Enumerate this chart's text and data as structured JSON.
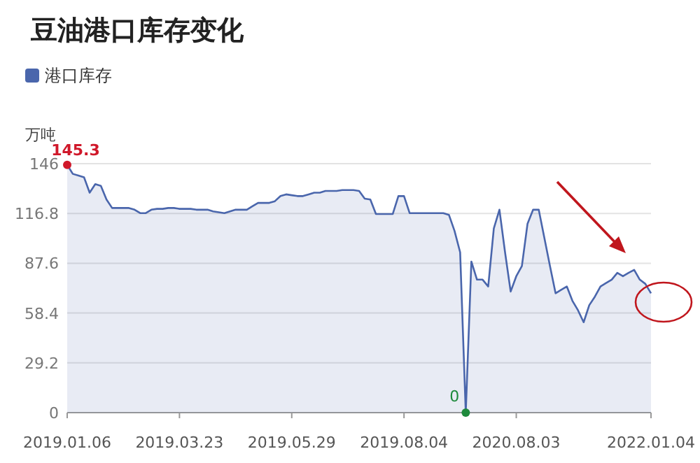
{
  "chart_data": {
    "type": "area",
    "title": "豆油港口库存变化",
    "ylabel": "万吨",
    "legend": "top left",
    "grid": "y",
    "categories": [
      "2019.01.06",
      null,
      null,
      null,
      null,
      null,
      null,
      null,
      null,
      null,
      null,
      null,
      null,
      null,
      null,
      null,
      null,
      null,
      null,
      null,
      "2019.03.23",
      null,
      null,
      null,
      null,
      null,
      null,
      null,
      null,
      null,
      null,
      null,
      null,
      null,
      null,
      null,
      null,
      null,
      null,
      null,
      "2019.05.29",
      null,
      null,
      null,
      null,
      null,
      null,
      null,
      null,
      null,
      null,
      null,
      null,
      null,
      null,
      null,
      null,
      null,
      null,
      null,
      "2019.08.04",
      null,
      null,
      null,
      null,
      null,
      null,
      null,
      null,
      null,
      null,
      null,
      null,
      null,
      null,
      null,
      null,
      null,
      null,
      null,
      "2020.08.03",
      null,
      null,
      null,
      null,
      null,
      null,
      null,
      null,
      null,
      null,
      null,
      null,
      null,
      null,
      null,
      null,
      null,
      null,
      null,
      null,
      null,
      null,
      null,
      "2022.01.04"
    ],
    "ylim": [
      0,
      146
    ],
    "yticks": [
      0,
      29.2,
      58.4,
      87.6,
      116.8,
      146
    ],
    "series": [
      {
        "name": "港口库存",
        "color": "#4a66ac",
        "values": [
          145.3,
          140,
          139,
          138,
          129,
          134,
          133,
          125,
          120,
          120,
          120,
          120,
          119,
          117,
          117,
          119,
          119.5,
          119.5,
          120,
          120,
          119.5,
          119.5,
          119.5,
          119,
          119,
          119,
          118,
          117.5,
          117,
          118,
          119,
          119,
          119,
          121,
          123,
          123,
          123,
          124,
          127,
          128,
          127.5,
          127,
          127,
          128,
          129,
          129,
          130,
          130,
          130,
          130.5,
          130.5,
          130.5,
          130,
          125.5,
          125,
          116.5,
          116.5,
          116.5,
          116.5,
          127,
          127,
          117,
          117,
          117,
          117,
          117,
          117,
          117,
          116,
          106.6,
          94,
          0,
          88.6,
          78,
          78,
          74,
          108,
          119,
          94,
          71,
          80,
          86,
          110.7,
          119,
          119,
          102.5,
          86,
          70,
          72,
          74,
          65.6,
          60,
          53,
          63,
          68,
          74,
          76,
          78,
          82,
          80,
          82,
          83.7,
          78,
          75.5,
          70
        ],
        "value_labels": [
          "145.3",
          null,
          null,
          null,
          null,
          null,
          null,
          null,
          null,
          null,
          null,
          null,
          null,
          null,
          null,
          null,
          null,
          null,
          null,
          null,
          null,
          null,
          null,
          null,
          null,
          null,
          null,
          null,
          null,
          null,
          null,
          null,
          null,
          null,
          null,
          null,
          null,
          null,
          null,
          null,
          null,
          null,
          null,
          null,
          null,
          null,
          null,
          null,
          null,
          null,
          null,
          null,
          null,
          null,
          null,
          null,
          null,
          null,
          null,
          null,
          null,
          null,
          null,
          null,
          null,
          null,
          null,
          null,
          null,
          null,
          null,
          "0",
          null,
          null,
          null,
          null,
          null,
          null,
          null,
          null,
          null,
          null,
          null,
          null,
          null,
          null,
          null,
          null,
          null,
          null,
          null,
          null,
          null,
          null,
          null,
          null,
          null,
          null,
          null,
          null,
          null,
          null,
          null,
          null,
          null
        ]
      }
    ]
  }
}
